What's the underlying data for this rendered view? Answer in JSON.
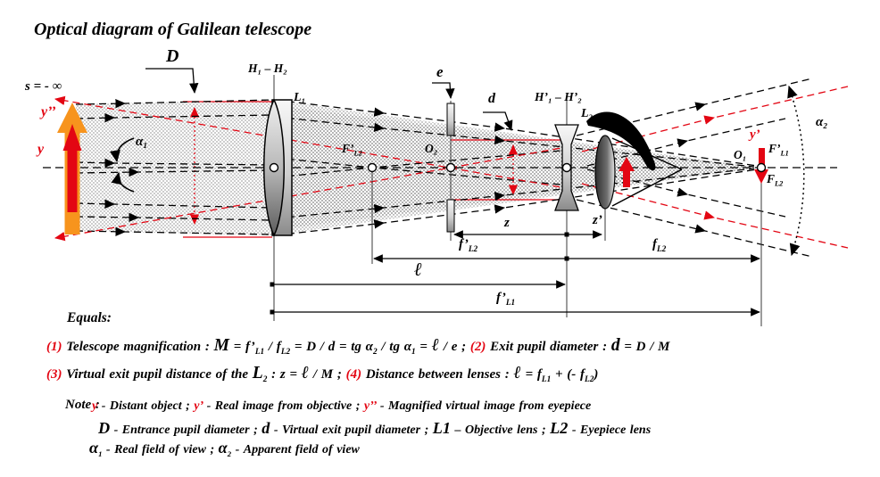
{
  "colors": {
    "accent_red": "#e30613",
    "accent_orange": "#f7941d",
    "beam_gray": "#9a9a9a"
  },
  "title": "Optical diagram of Galilean telescope",
  "icons": {
    "eye": "human-eye-side-view"
  },
  "diagram": {
    "labels": {
      "s_infinity": "s = - ∞",
      "y2p": "y’’",
      "y": "y",
      "yp": "y’",
      "alpha1": "α₁",
      "alpha2": "α₂",
      "d_cap": "D",
      "h1h2": "H₁ – H₂",
      "l1": "L₁",
      "e": "e",
      "d": "d",
      "h1ph2p": "H’₁ – H’₂",
      "l2": "L₂",
      "o2": "O₂",
      "o1": "O₁",
      "z": "z",
      "zp": "z’",
      "ell": "ℓ",
      "fpl2": {
        "base": "f’",
        "sub": "L2"
      },
      "fl2": {
        "base": "f",
        "sub": "L2"
      },
      "fpl1": {
        "base": "f’",
        "sub": "L1"
      },
      "Fpl1": {
        "base": "F’",
        "sub": "L1"
      },
      "Fl2": {
        "base": "F",
        "sub": "L2"
      },
      "Fpl2": {
        "base": "F’",
        "sub": "L2"
      }
    }
  },
  "equals_section": {
    "heading": "Equals:",
    "line1": [
      {
        "text": "(1) ",
        "cls": "red"
      },
      {
        "text": "Telescope magnification : "
      },
      {
        "text": "M",
        "cls": "big"
      },
      {
        "text": " = f’"
      },
      {
        "text": "L1",
        "cls": "sub"
      },
      {
        "text": " / f"
      },
      {
        "text": "L2",
        "cls": "sub"
      },
      {
        "text": " = D / d = tg α"
      },
      {
        "text": "2",
        "cls": "sub"
      },
      {
        "text": " / tg α"
      },
      {
        "text": "1",
        "cls": "sub"
      },
      {
        "text": " = "
      },
      {
        "text": "ℓ",
        "cls": "big"
      },
      {
        "text": " / e  ;  "
      },
      {
        "text": "(2) ",
        "cls": "red"
      },
      {
        "text": "Exit pupil diameter : "
      },
      {
        "text": "d",
        "cls": "big"
      },
      {
        "text": " = D / M"
      }
    ],
    "line2": [
      {
        "text": "(3) ",
        "cls": "red"
      },
      {
        "text": "Virtual exit pupil distance of the "
      },
      {
        "text": "L",
        "cls": "big"
      },
      {
        "text": "2",
        "cls": "sub"
      },
      {
        "text": " : z = "
      },
      {
        "text": "ℓ",
        "cls": "big"
      },
      {
        "text": " / M  ;  "
      },
      {
        "text": "(4) ",
        "cls": "red"
      },
      {
        "text": "Distance between lenses : "
      },
      {
        "text": "ℓ",
        "cls": "big"
      },
      {
        "text": " = f"
      },
      {
        "text": "L1",
        "cls": "sub"
      },
      {
        "text": " + (- f"
      },
      {
        "text": "L2",
        "cls": "sub"
      },
      {
        "text": ")"
      }
    ]
  },
  "note_section": {
    "heading": "Note :",
    "line1": [
      {
        "text": "y",
        "cls": "red"
      },
      {
        "text": " -  Distant object  ;  "
      },
      {
        "text": "y’",
        "cls": "red"
      },
      {
        "text": " - Real image from objective  ;  "
      },
      {
        "text": "y’’",
        "cls": "red"
      },
      {
        "text": " -  Magnified virtual image from eyepiece"
      }
    ],
    "line2": [
      {
        "text": "D",
        "cls": "big"
      },
      {
        "text": " -  Entrance pupil diameter  ;  "
      },
      {
        "text": "d",
        "cls": "big"
      },
      {
        "text": "  -  Virtual exit pupil diameter  ;  "
      },
      {
        "text": "L1",
        "cls": "big"
      },
      {
        "text": " – Objective lens  ;  "
      },
      {
        "text": "L2",
        "cls": "big"
      },
      {
        "text": "  -  Eyepiece lens"
      }
    ],
    "line3": [
      {
        "text": "α",
        "cls": "big"
      },
      {
        "text": "1",
        "cls": "sub"
      },
      {
        "text": " - Real field of view  ;  "
      },
      {
        "text": "α",
        "cls": "big"
      },
      {
        "text": "2",
        "cls": "sub"
      },
      {
        "text": " - Apparent field of view"
      }
    ]
  }
}
